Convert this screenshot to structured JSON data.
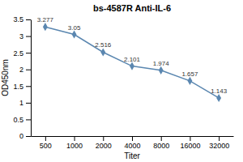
{
  "chart_data": {
    "type": "line",
    "title": "bs-4587R Anti-IL-6",
    "x_label": "Titer",
    "y_label": "OD450nm",
    "categories": [
      "500",
      "1000",
      "2000",
      "4000",
      "8000",
      "16000",
      "32000"
    ],
    "values": [
      3.277,
      3.05,
      2.516,
      2.101,
      1.974,
      1.657,
      1.143
    ],
    "color": "#5b87b0",
    "marker": "diamond",
    "ylim": [
      0,
      3.5
    ],
    "yticks": [
      0,
      0.5,
      1,
      1.5,
      2,
      2.5,
      3,
      3.5
    ],
    "grid": false,
    "data_labels": true
  }
}
